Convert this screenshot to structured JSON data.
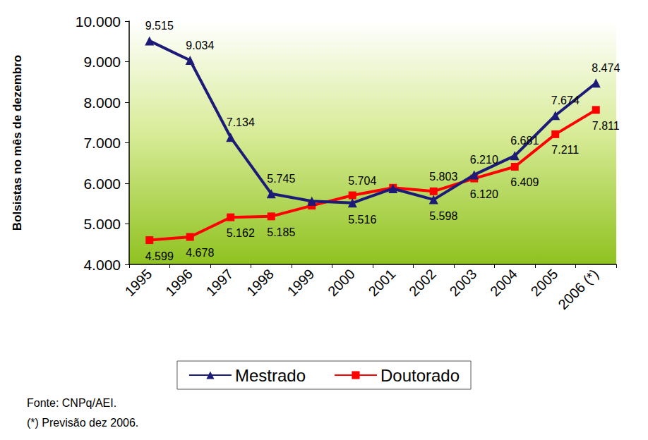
{
  "chart_data": {
    "type": "line",
    "ylabel": "Bolsistas no mês de dezembro",
    "categories": [
      "1995",
      "1996",
      "1997",
      "1998",
      "1999",
      "2000",
      "2001",
      "2002",
      "2003",
      "2004",
      "2005",
      "2006 (*)"
    ],
    "series": [
      {
        "name": "Mestrado",
        "color": "#1c1c78",
        "marker": "triangle",
        "values": [
          9515,
          9034,
          7134,
          5745,
          5560,
          5516,
          5870,
          5598,
          6210,
          6681,
          7674,
          8474
        ],
        "value_labels": [
          "9.515",
          "9.034",
          "7.134",
          "5.745",
          null,
          "5.516",
          null,
          "5.598",
          "6.210",
          "6.681",
          "7.674",
          "8.474"
        ]
      },
      {
        "name": "Doutorado",
        "color": "#ff0000",
        "marker": "square",
        "values": [
          4599,
          4678,
          5162,
          5185,
          5450,
          5704,
          5890,
          5803,
          6120,
          6409,
          7211,
          7811
        ],
        "value_labels": [
          "4.599",
          "4.678",
          "5.162",
          "5.185",
          null,
          "5.704",
          null,
          "5.803",
          "6.120",
          "6.409",
          "7.211",
          "7.811"
        ]
      }
    ],
    "ylim": [
      4000,
      10000
    ],
    "yticks": [
      {
        "value": 4000,
        "label": "4.000"
      },
      {
        "value": 5000,
        "label": "5.000"
      },
      {
        "value": 6000,
        "label": "6.000"
      },
      {
        "value": 7000,
        "label": "7.000"
      },
      {
        "value": 8000,
        "label": "8.000"
      },
      {
        "value": 9000,
        "label": "9.000"
      },
      {
        "value": 10000,
        "label": "10.000"
      }
    ],
    "grid": false,
    "legend": "bottom",
    "data_labels": true,
    "annotations": [
      "Fonte: CNPq/AEI.",
      "(*) Previsão dez 2006."
    ]
  }
}
